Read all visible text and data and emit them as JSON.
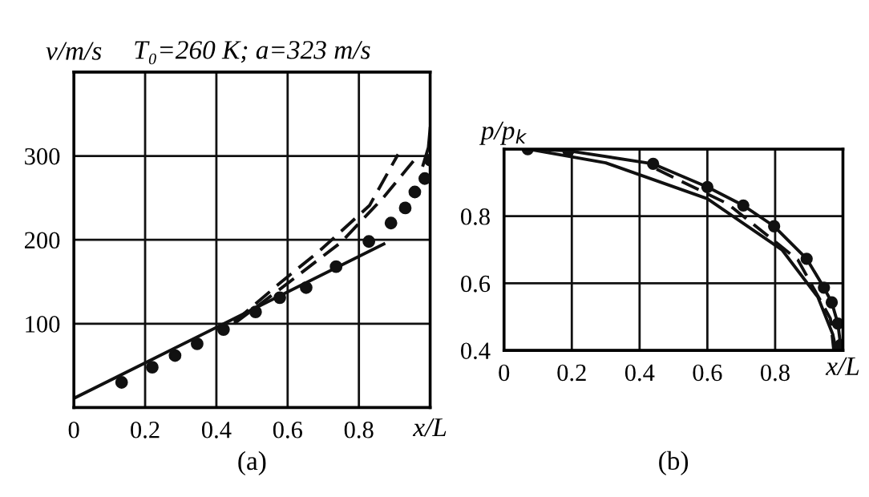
{
  "chart_data": [
    {
      "type": "line",
      "title": "T₀=260 K; a=323 m/s",
      "ylabel": "v/m/s",
      "xlabel": "x/L",
      "annotations": [
        "(a)"
      ],
      "xlim": [
        0,
        1.0
      ],
      "ylim": [
        0,
        400
      ],
      "xticks": [
        0,
        0.2,
        0.4,
        0.6,
        0.8,
        {
          "value": 1.0,
          "label": null
        }
      ],
      "yticks": [
        {
          "value": 0,
          "label": null
        },
        100,
        200,
        300,
        {
          "value": 400,
          "label": null
        }
      ],
      "grid": true,
      "series": [
        {
          "line_style": "solid",
          "color": "#111111",
          "x": [
            0,
            0.87
          ],
          "values": [
            11,
            195
          ]
        },
        {
          "line_style": "dashed",
          "color": "#111111",
          "x": [
            0.45,
            0.58,
            0.69,
            0.83,
            0.91
          ],
          "values": [
            102,
            149,
            187,
            241,
            302
          ]
        },
        {
          "line_style": "dashed",
          "color": "#111111",
          "x": [
            0.45,
            0.575,
            0.75,
            0.87,
            0.955
          ],
          "values": [
            100,
            140,
            197,
            251,
            295
          ]
        },
        {
          "line_style": "solid",
          "color": "#111111",
          "x": [
            0.98,
            0.995,
            1.0
          ],
          "values": [
            289,
            310,
            333
          ]
        },
        {
          "type": "scatter",
          "marker": "circle",
          "color": "#111111",
          "x": [
            0.134,
            0.22,
            0.284,
            0.346,
            0.42,
            0.51,
            0.578,
            0.652,
            0.736,
            0.828,
            0.89,
            0.93,
            0.957,
            0.985,
            1.0
          ],
          "values": [
            30,
            48,
            62,
            76,
            93,
            114,
            131,
            143,
            168,
            198,
            220,
            238,
            257,
            273,
            295
          ]
        }
      ]
    },
    {
      "type": "line",
      "ylabel": "p/p$_{k}$",
      "xlabel": "x/L",
      "annotations": [
        "(b)"
      ],
      "xlim": [
        0,
        1.0
      ],
      "ylim": [
        0.4,
        1.0
      ],
      "xticks": [
        0,
        0.2,
        0.4,
        0.6,
        0.8,
        {
          "value": 1.0,
          "label": null
        }
      ],
      "yticks": [
        0.4,
        0.6,
        0.8,
        {
          "value": 1.0,
          "label": null
        }
      ],
      "grid": true,
      "series": [
        {
          "line_style": "solid",
          "marker": "circle",
          "color": "#111111",
          "x": [
            0.07,
            0.19,
            0.44,
            0.6,
            0.706,
            0.797,
            0.893,
            0.944,
            0.967,
            0.985,
            0.993
          ],
          "values": [
            1.0,
            0.995,
            0.956,
            0.887,
            0.832,
            0.77,
            0.673,
            0.587,
            0.543,
            0.48,
            0.416
          ]
        },
        {
          "line_style": "solid",
          "color": "#111111",
          "x": [
            0.07,
            0.3,
            0.6,
            0.82,
            0.926,
            0.97,
            0.98
          ],
          "values": [
            1.0,
            0.959,
            0.852,
            0.7,
            0.559,
            0.448,
            0.4
          ]
        },
        {
          "line_style": "dashed",
          "color": "#111111",
          "x": [
            0.45,
            0.66,
            0.867,
            0.963,
            0.973
          ],
          "values": [
            0.94,
            0.837,
            0.67,
            0.495,
            0.4
          ]
        }
      ]
    }
  ]
}
